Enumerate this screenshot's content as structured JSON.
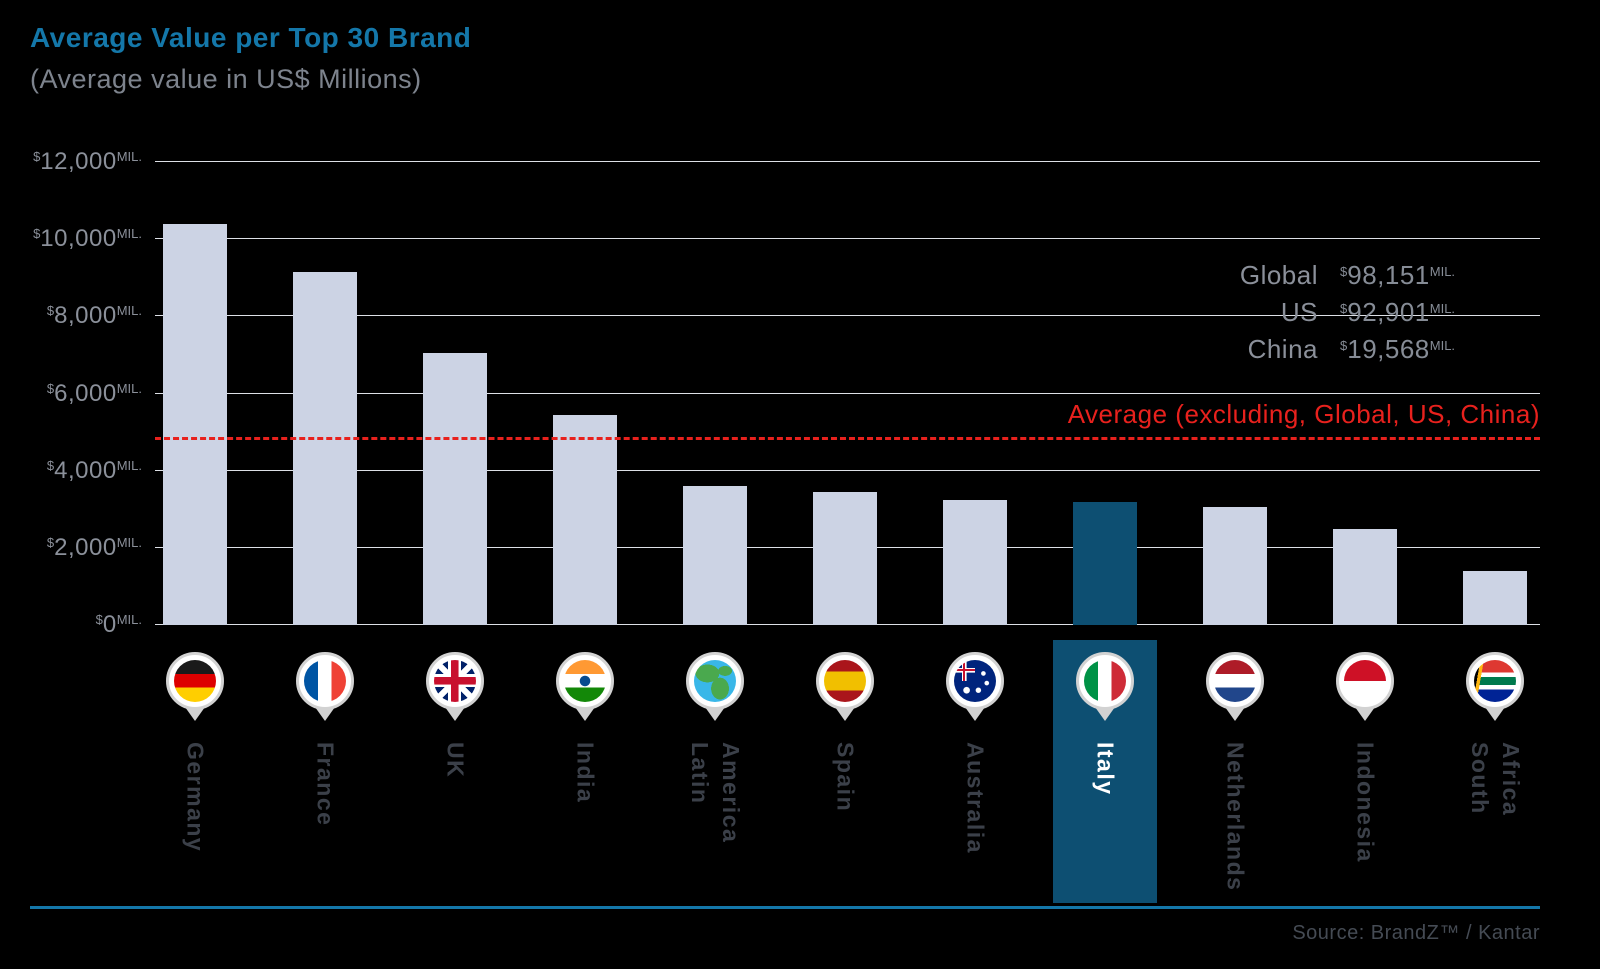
{
  "header": {
    "title": "Average Value per Top 30 Brand",
    "subtitle": "(Average value in US$ Millions)"
  },
  "chart_data": {
    "type": "bar",
    "title": "Average Value per Top 30 Brand",
    "subtitle": "(Average value in US$ Millions)",
    "categories": [
      "Germany",
      "France",
      "UK",
      "India",
      "Latin America",
      "Spain",
      "Australia",
      "Italy",
      "Netherlands",
      "Indonesia",
      "South Africa"
    ],
    "values": [
      10400,
      9150,
      7050,
      5450,
      3600,
      3450,
      3250,
      3200,
      3050,
      2500,
      1400
    ],
    "flags": [
      "germany",
      "france",
      "uk",
      "india",
      "latin-america",
      "spain",
      "australia",
      "italy",
      "netherlands",
      "indonesia",
      "south-africa"
    ],
    "highlight_index": 7,
    "highlighted_category": "Italy",
    "ylim": [
      0,
      12000
    ],
    "yticks": [
      0,
      2000,
      4000,
      6000,
      8000,
      10000,
      12000
    ],
    "ytick_labels": [
      "0",
      "2,000",
      "4,000",
      "6,000",
      "8,000",
      "10,000",
      "12,000"
    ],
    "ytick_format": {
      "prefix": "$",
      "suffix": "MIL."
    },
    "grid": true,
    "legend": false,
    "average_line": {
      "value": 4800,
      "label": "Average (excluding, Global, US, China)"
    },
    "annotations": [
      {
        "label": "Global",
        "prefix": "$",
        "value": "98,151",
        "suffix": "MIL."
      },
      {
        "label": "US",
        "prefix": "$",
        "value": "92,901",
        "suffix": "MIL."
      },
      {
        "label": "China",
        "prefix": "$",
        "value": "19,568",
        "suffix": "MIL."
      }
    ]
  },
  "footer": {
    "source": "Source: BrandZ™ / Kantar"
  },
  "colors": {
    "bar": "#ccd3e4",
    "highlight": "#0d4f72",
    "title_blue": "#1477a9",
    "average_red": "#e8211d",
    "grid": "#dde0e6",
    "muted_text": "#8b909a"
  }
}
